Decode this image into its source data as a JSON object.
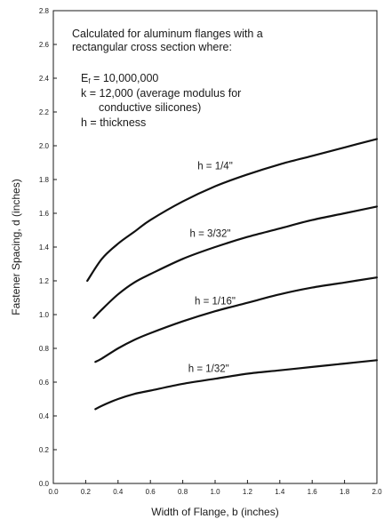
{
  "chart_data": {
    "type": "line",
    "xlabel": "Width of Flange, b (inches)",
    "ylabel": "Fastener Spacing, d (inches)",
    "xlim": [
      0.0,
      2.0
    ],
    "ylim": [
      0.0,
      2.8
    ],
    "x_ticks": [
      "0.0",
      "0.2",
      "0.4",
      "0.6",
      "0.8",
      "1.0",
      "1.2",
      "1.4",
      "1.6",
      "1.8",
      "2.0"
    ],
    "y_ticks": [
      "0.0",
      "0.2",
      "0.4",
      "0.6",
      "0.8",
      "1.0",
      "1.2",
      "1.4",
      "1.6",
      "1.8",
      "2.0",
      "2.2",
      "2.4",
      "2.6",
      "2.8"
    ],
    "grid": false,
    "annotation": {
      "line1": "Calculated for aluminum flanges with a",
      "line2": "rectangular cross section where:",
      "ef_symbol": "E",
      "ef_subscript": "f",
      "ef_value": " = 10,000,000",
      "k_line": "k = 12,000 (average modulus for",
      "k_line2": "conductive silicones)",
      "h_line": "h = thickness"
    },
    "series": [
      {
        "name": "h = 1/4\"",
        "x": [
          0.21,
          0.3,
          0.4,
          0.5,
          0.6,
          0.8,
          1.0,
          1.2,
          1.4,
          1.6,
          1.8,
          2.0
        ],
        "y": [
          1.2,
          1.33,
          1.42,
          1.49,
          1.56,
          1.67,
          1.76,
          1.83,
          1.89,
          1.94,
          1.99,
          2.04
        ]
      },
      {
        "name": "h = 3/32\"",
        "x": [
          0.25,
          0.3,
          0.4,
          0.5,
          0.6,
          0.8,
          1.0,
          1.2,
          1.4,
          1.6,
          1.8,
          2.0
        ],
        "y": [
          0.98,
          1.03,
          1.12,
          1.19,
          1.24,
          1.33,
          1.4,
          1.46,
          1.51,
          1.56,
          1.6,
          1.64
        ]
      },
      {
        "name": "h = 1/16\"",
        "x": [
          0.26,
          0.3,
          0.4,
          0.5,
          0.6,
          0.8,
          1.0,
          1.2,
          1.4,
          1.6,
          1.8,
          2.0
        ],
        "y": [
          0.72,
          0.74,
          0.8,
          0.85,
          0.89,
          0.96,
          1.02,
          1.07,
          1.12,
          1.16,
          1.19,
          1.22
        ]
      },
      {
        "name": "h = 1/32\"",
        "x": [
          0.26,
          0.3,
          0.4,
          0.5,
          0.6,
          0.8,
          1.0,
          1.2,
          1.4,
          1.6,
          1.8,
          2.0
        ],
        "y": [
          0.44,
          0.46,
          0.5,
          0.53,
          0.55,
          0.59,
          0.62,
          0.65,
          0.67,
          0.69,
          0.71,
          0.73
        ]
      }
    ],
    "series_label_at": [
      {
        "x": 1.0,
        "y": 1.86
      },
      {
        "x": 0.97,
        "y": 1.46
      },
      {
        "x": 1.0,
        "y": 1.06
      },
      {
        "x": 0.96,
        "y": 0.66
      }
    ]
  }
}
